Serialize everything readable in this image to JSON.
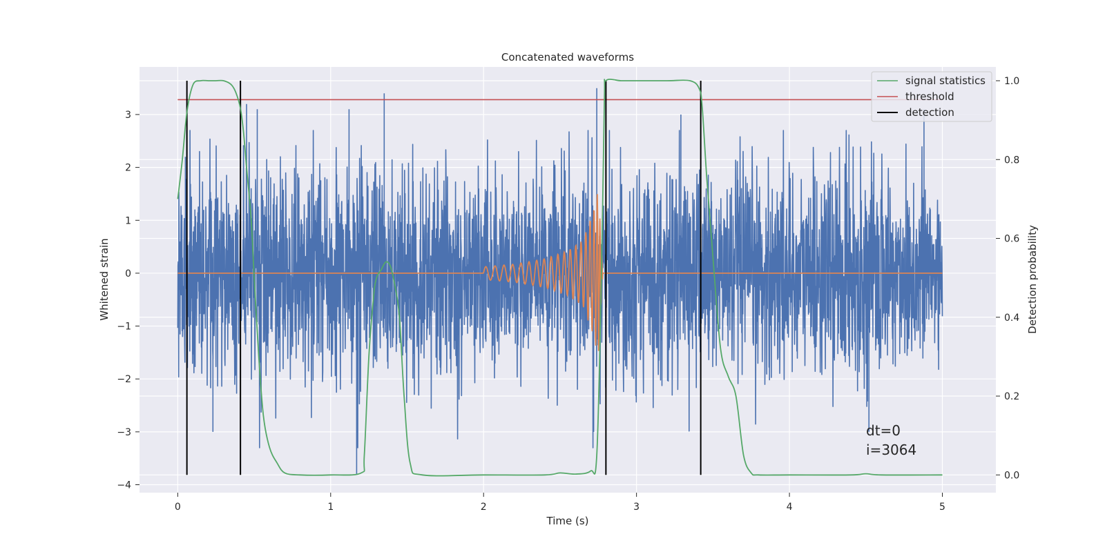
{
  "chart_data": {
    "type": "line",
    "title": "Concatenated waveforms",
    "xlabel": "Time (s)",
    "ylabel_left": "Whitened strain",
    "ylabel_right": "Detection probability",
    "xlim": [
      -0.25,
      5.35
    ],
    "ylim_left": [
      -4.15,
      3.9
    ],
    "ylim_right": [
      -0.045,
      1.035
    ],
    "x_ticks": [
      0,
      1,
      2,
      3,
      4,
      5
    ],
    "y_ticks_left": [
      3,
      2,
      1,
      0,
      -1,
      -2,
      -3,
      -4
    ],
    "y_ticks_right": [
      1.0,
      0.8,
      0.6,
      0.4,
      0.2,
      0.0
    ],
    "grid": true,
    "legend_position": "top-right",
    "legend": [
      {
        "label": "signal statistics",
        "color": "#55a868"
      },
      {
        "label": "threshold",
        "color": "#c44e52"
      },
      {
        "label": "detection",
        "color": "#000000"
      }
    ],
    "series": [
      {
        "role": "noise",
        "color": "#4c72b0",
        "x_range": [
          0,
          5
        ],
        "approx_peak_points": [
          {
            "x": 0.05,
            "y": 2.2
          },
          {
            "x": 0.45,
            "y": 3.2
          },
          {
            "x": 0.52,
            "y": 3.1
          },
          {
            "x": 1.12,
            "y": 3.1
          },
          {
            "x": 1.17,
            "y": -3.8
          },
          {
            "x": 1.35,
            "y": 3.4
          },
          {
            "x": 2.74,
            "y": 3.5
          },
          {
            "x": 3.29,
            "y": 3.0
          },
          {
            "x": 4.88,
            "y": 3.1
          },
          {
            "x": 0.23,
            "y": -3.0
          },
          {
            "x": 2.72,
            "y": -3.0
          },
          {
            "x": 4.52,
            "y": -3.0
          }
        ]
      },
      {
        "role": "injected chirp",
        "color": "#dd8452",
        "x": [
          0,
          2.0,
          2.2,
          2.4,
          2.55,
          2.65,
          2.72,
          2.75,
          2.78,
          5
        ],
        "y_envelope": [
          0,
          0.12,
          0.17,
          0.27,
          0.42,
          0.62,
          1.2,
          1.6,
          0,
          0
        ]
      },
      {
        "name": "signal statistics",
        "color": "#55a868",
        "axis": "right",
        "x": [
          0,
          0.03,
          0.06,
          0.1,
          0.15,
          0.2,
          0.25,
          0.3,
          0.35,
          0.38,
          0.41,
          0.43,
          0.45,
          0.48,
          0.5,
          0.53,
          0.56,
          0.6,
          0.65,
          0.7,
          0.8,
          1.0,
          1.2,
          1.22,
          1.25,
          1.28,
          1.3,
          1.33,
          1.36,
          1.39,
          1.42,
          1.45,
          1.48,
          1.52,
          1.6,
          2.0,
          2.4,
          2.5,
          2.6,
          2.7,
          2.74,
          2.77,
          2.79,
          2.8,
          2.9,
          3.0,
          3.2,
          3.35,
          3.41,
          3.43,
          3.46,
          3.5,
          3.55,
          3.6,
          3.65,
          3.7,
          3.75,
          3.8,
          4.0,
          4.4,
          4.5,
          4.6,
          5.0
        ],
        "y": [
          0.7,
          0.8,
          0.92,
          0.99,
          1.0,
          1.0,
          1.0,
          1.0,
          0.99,
          0.97,
          0.93,
          0.87,
          0.78,
          0.65,
          0.5,
          0.3,
          0.15,
          0.07,
          0.03,
          0.005,
          0.0,
          0.0,
          0.005,
          0.05,
          0.3,
          0.45,
          0.5,
          0.52,
          0.54,
          0.53,
          0.48,
          0.4,
          0.2,
          0.03,
          0.0,
          0.0,
          0.0,
          0.005,
          0.002,
          0.01,
          0.05,
          0.5,
          0.95,
          1.0,
          1.0,
          1.0,
          1.0,
          1.0,
          0.98,
          0.93,
          0.75,
          0.55,
          0.32,
          0.25,
          0.2,
          0.05,
          0.005,
          0.0,
          0.0,
          0.0,
          0.003,
          0.0,
          0.0
        ]
      },
      {
        "name": "threshold",
        "color": "#c44e52",
        "axis": "right",
        "x": [
          0,
          5
        ],
        "y": [
          0.952,
          0.952
        ]
      }
    ],
    "detections": [
      0.06,
      0.41,
      2.8,
      3.42
    ],
    "annotations": [
      {
        "text": "dt=0",
        "x": 4.5,
        "y": -3.05
      },
      {
        "text": "i=3064",
        "x": 4.5,
        "y": -3.5
      }
    ]
  },
  "colors": {
    "plot_background": "#eaeaf2",
    "grid": "#ffffff",
    "figure_background": "#ffffff"
  }
}
